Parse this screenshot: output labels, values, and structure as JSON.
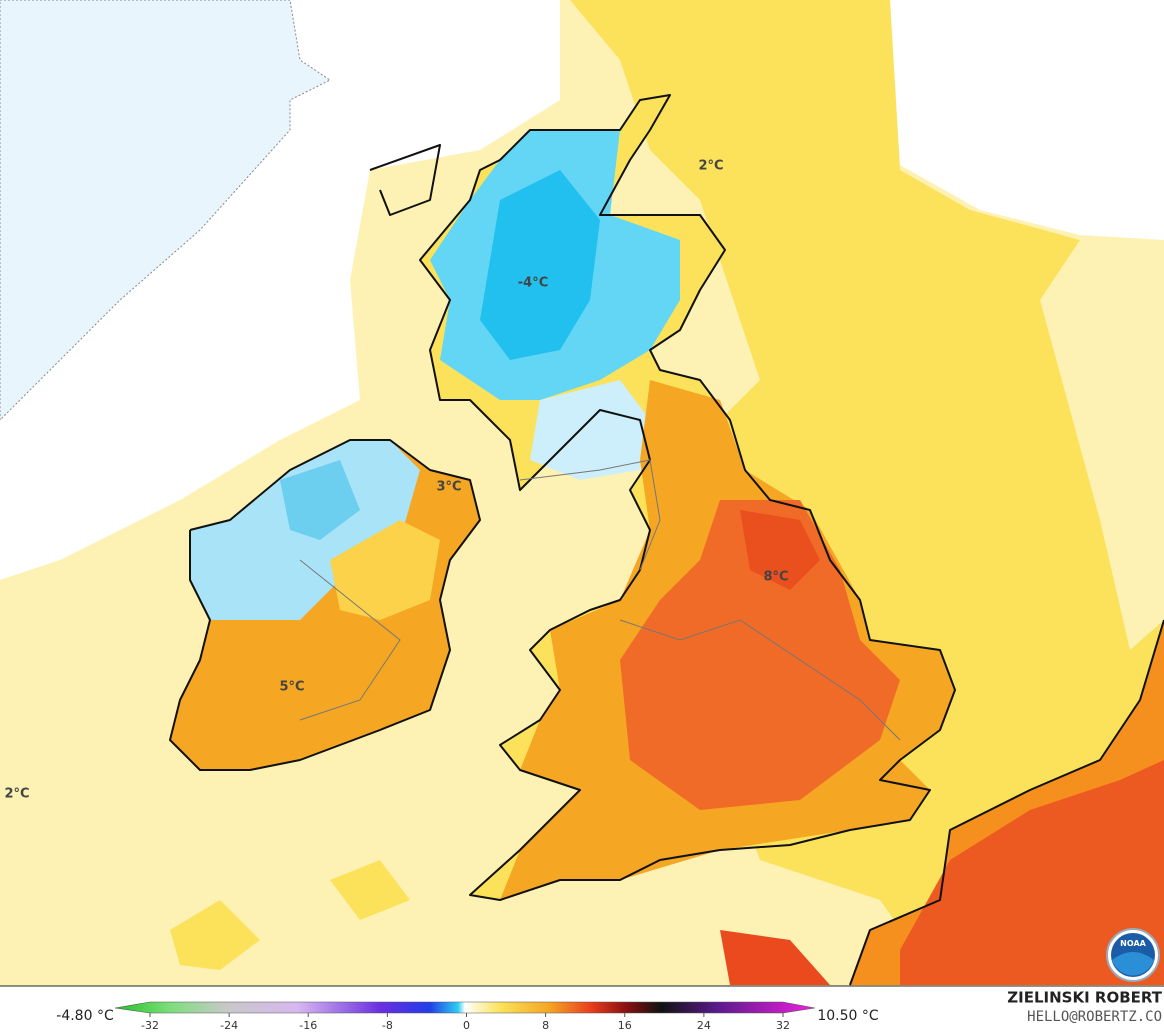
{
  "map": {
    "labels": [
      "2°C",
      "-4°C",
      "3°C",
      "8°C",
      "5°C",
      "2°C"
    ]
  },
  "colorbar": {
    "min_label": "-4.80 °C",
    "max_label": "10.50 °C",
    "ticks": [
      -32,
      -24,
      -16,
      -8,
      0,
      8,
      16,
      24,
      32
    ]
  },
  "credit": {
    "author": "ZIELINSKI ROBERT",
    "email": "HELLO@ROBERTZ.CO"
  }
}
